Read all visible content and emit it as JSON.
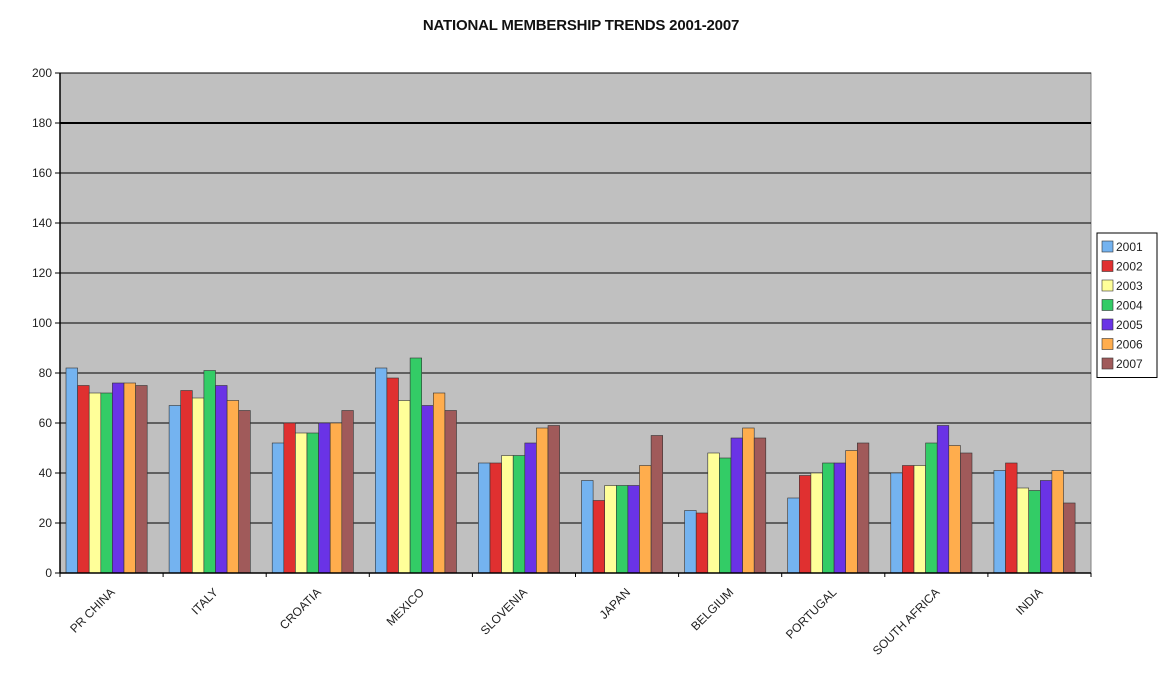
{
  "chart_data": {
    "type": "bar",
    "title": "NATIONAL MEMBERSHIP TRENDS 2001-2007",
    "xlabel": "",
    "ylabel": "",
    "ylim": [
      0,
      200
    ],
    "yticks": [
      0,
      20,
      40,
      60,
      80,
      100,
      120,
      140,
      160,
      180,
      200
    ],
    "grid": true,
    "legend_position": "right",
    "categories": [
      "PR CHINA",
      "ITALY",
      "CROATIA",
      "MEXICO",
      "SLOVENIA",
      "JAPAN",
      "BELGIUM",
      "PORTUGAL",
      "SOUTH AFRICA",
      "INDIA"
    ],
    "series": [
      {
        "name": "2001",
        "color": "#74b3f0",
        "values": [
          82,
          67,
          52,
          82,
          44,
          37,
          25,
          30,
          40,
          41
        ]
      },
      {
        "name": "2002",
        "color": "#e03030",
        "values": [
          75,
          73,
          60,
          78,
          44,
          29,
          24,
          39,
          43,
          44
        ]
      },
      {
        "name": "2003",
        "color": "#ffff99",
        "values": [
          72,
          70,
          56,
          69,
          47,
          35,
          48,
          40,
          43,
          34
        ]
      },
      {
        "name": "2004",
        "color": "#33cc66",
        "values": [
          72,
          81,
          56,
          86,
          47,
          35,
          46,
          44,
          52,
          33
        ]
      },
      {
        "name": "2005",
        "color": "#6a33e6",
        "values": [
          76,
          75,
          60,
          67,
          52,
          35,
          54,
          44,
          59,
          37
        ]
      },
      {
        "name": "2006",
        "color": "#ffad4d",
        "values": [
          76,
          69,
          60,
          72,
          58,
          43,
          58,
          49,
          51,
          41
        ]
      },
      {
        "name": "2007",
        "color": "#a05a5a",
        "values": [
          75,
          65,
          65,
          65,
          59,
          55,
          54,
          52,
          48,
          28
        ]
      }
    ]
  }
}
